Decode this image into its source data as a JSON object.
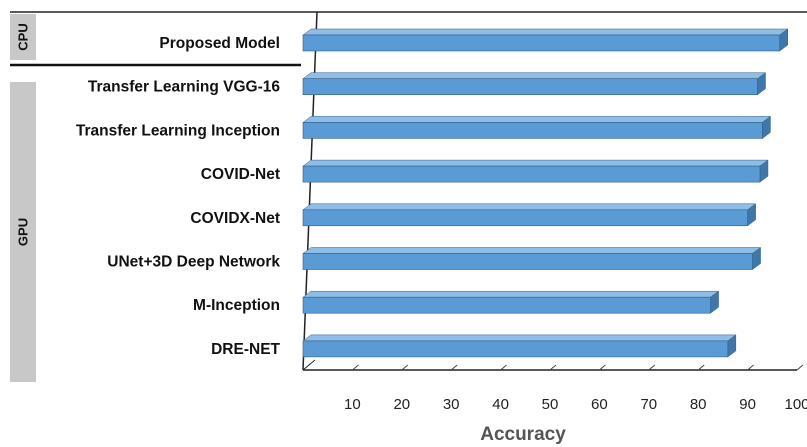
{
  "chart_data": {
    "type": "bar",
    "orientation": "horizontal",
    "style": "3d",
    "categories": [
      "Proposed Model",
      "Transfer Learning VGG-16",
      "Transfer Learning Inception",
      "COVID-Net",
      "COVIDX-Net",
      "UNet+3D Deep Network",
      "M-Inception",
      "DRE-NET"
    ],
    "values": [
      96.5,
      92,
      93,
      92.5,
      90,
      91,
      82.5,
      86
    ],
    "groups": [
      {
        "label": "CPU",
        "categories": [
          "Proposed Model"
        ]
      },
      {
        "label": "GPU",
        "categories": [
          "Transfer Learning VGG-16",
          "Transfer Learning Inception",
          "COVID-Net",
          "COVIDX-Net",
          "UNet+3D Deep Network",
          "M-Inception",
          "DRE-NET"
        ]
      }
    ],
    "xlabel": "Accuracy",
    "xlim": [
      0,
      100
    ],
    "xticks": [
      "10",
      "20",
      "30",
      "40",
      "50",
      "60",
      "70",
      "80",
      "90",
      "100"
    ],
    "grid": false,
    "colors": {
      "bar": "#5b9bd5",
      "bar_top": "#8fbde6",
      "bar_side": "#3f77aa",
      "group_band": "#c8c8c8"
    }
  }
}
